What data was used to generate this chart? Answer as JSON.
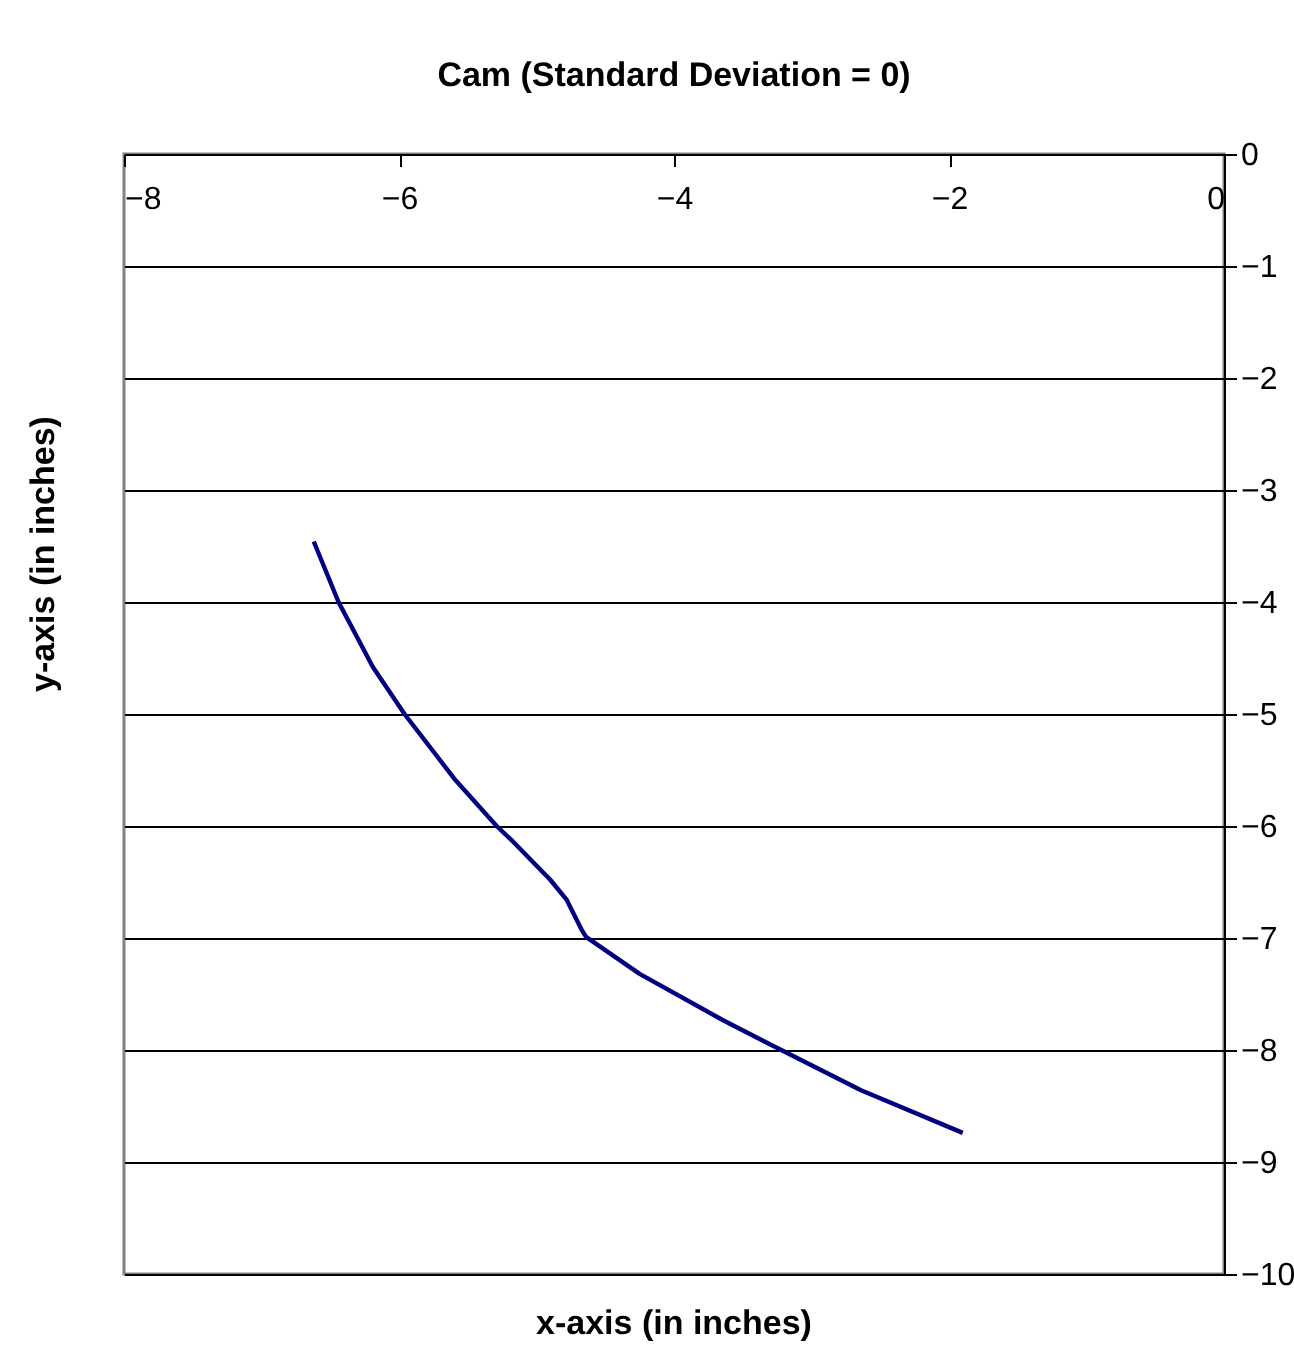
{
  "chart_data": {
    "type": "line",
    "title": "Cam (Standard Deviation = 0)",
    "xlabel": "x-axis (in inches)",
    "ylabel": "y-axis (in inches)",
    "x": [
      -6.62,
      -6.44,
      -6.19,
      -5.96,
      -5.59,
      -5.29,
      -5.17,
      -4.9,
      -4.78,
      -4.67,
      -4.64,
      -4.25,
      -3.65,
      -3.22,
      -2.64,
      -1.9
    ],
    "series": [
      {
        "color": "#000080",
        "values": [
          -3.46,
          -4.0,
          -4.58,
          -5.0,
          -5.59,
          -6.0,
          -6.14,
          -6.48,
          -6.66,
          -6.93,
          -6.99,
          -7.32,
          -7.73,
          -8.0,
          -8.36,
          -8.74
        ]
      }
    ],
    "xlim": [
      -8,
      0
    ],
    "xticks": [
      -8,
      -6,
      -4,
      -2,
      0
    ],
    "ylim": [
      -10,
      0
    ],
    "yticks": [
      0,
      -1,
      -2,
      -3,
      -4,
      -5,
      -6,
      -7,
      -8,
      -9,
      -10
    ],
    "grid": "y",
    "marker": "none",
    "line_style": "solid"
  }
}
